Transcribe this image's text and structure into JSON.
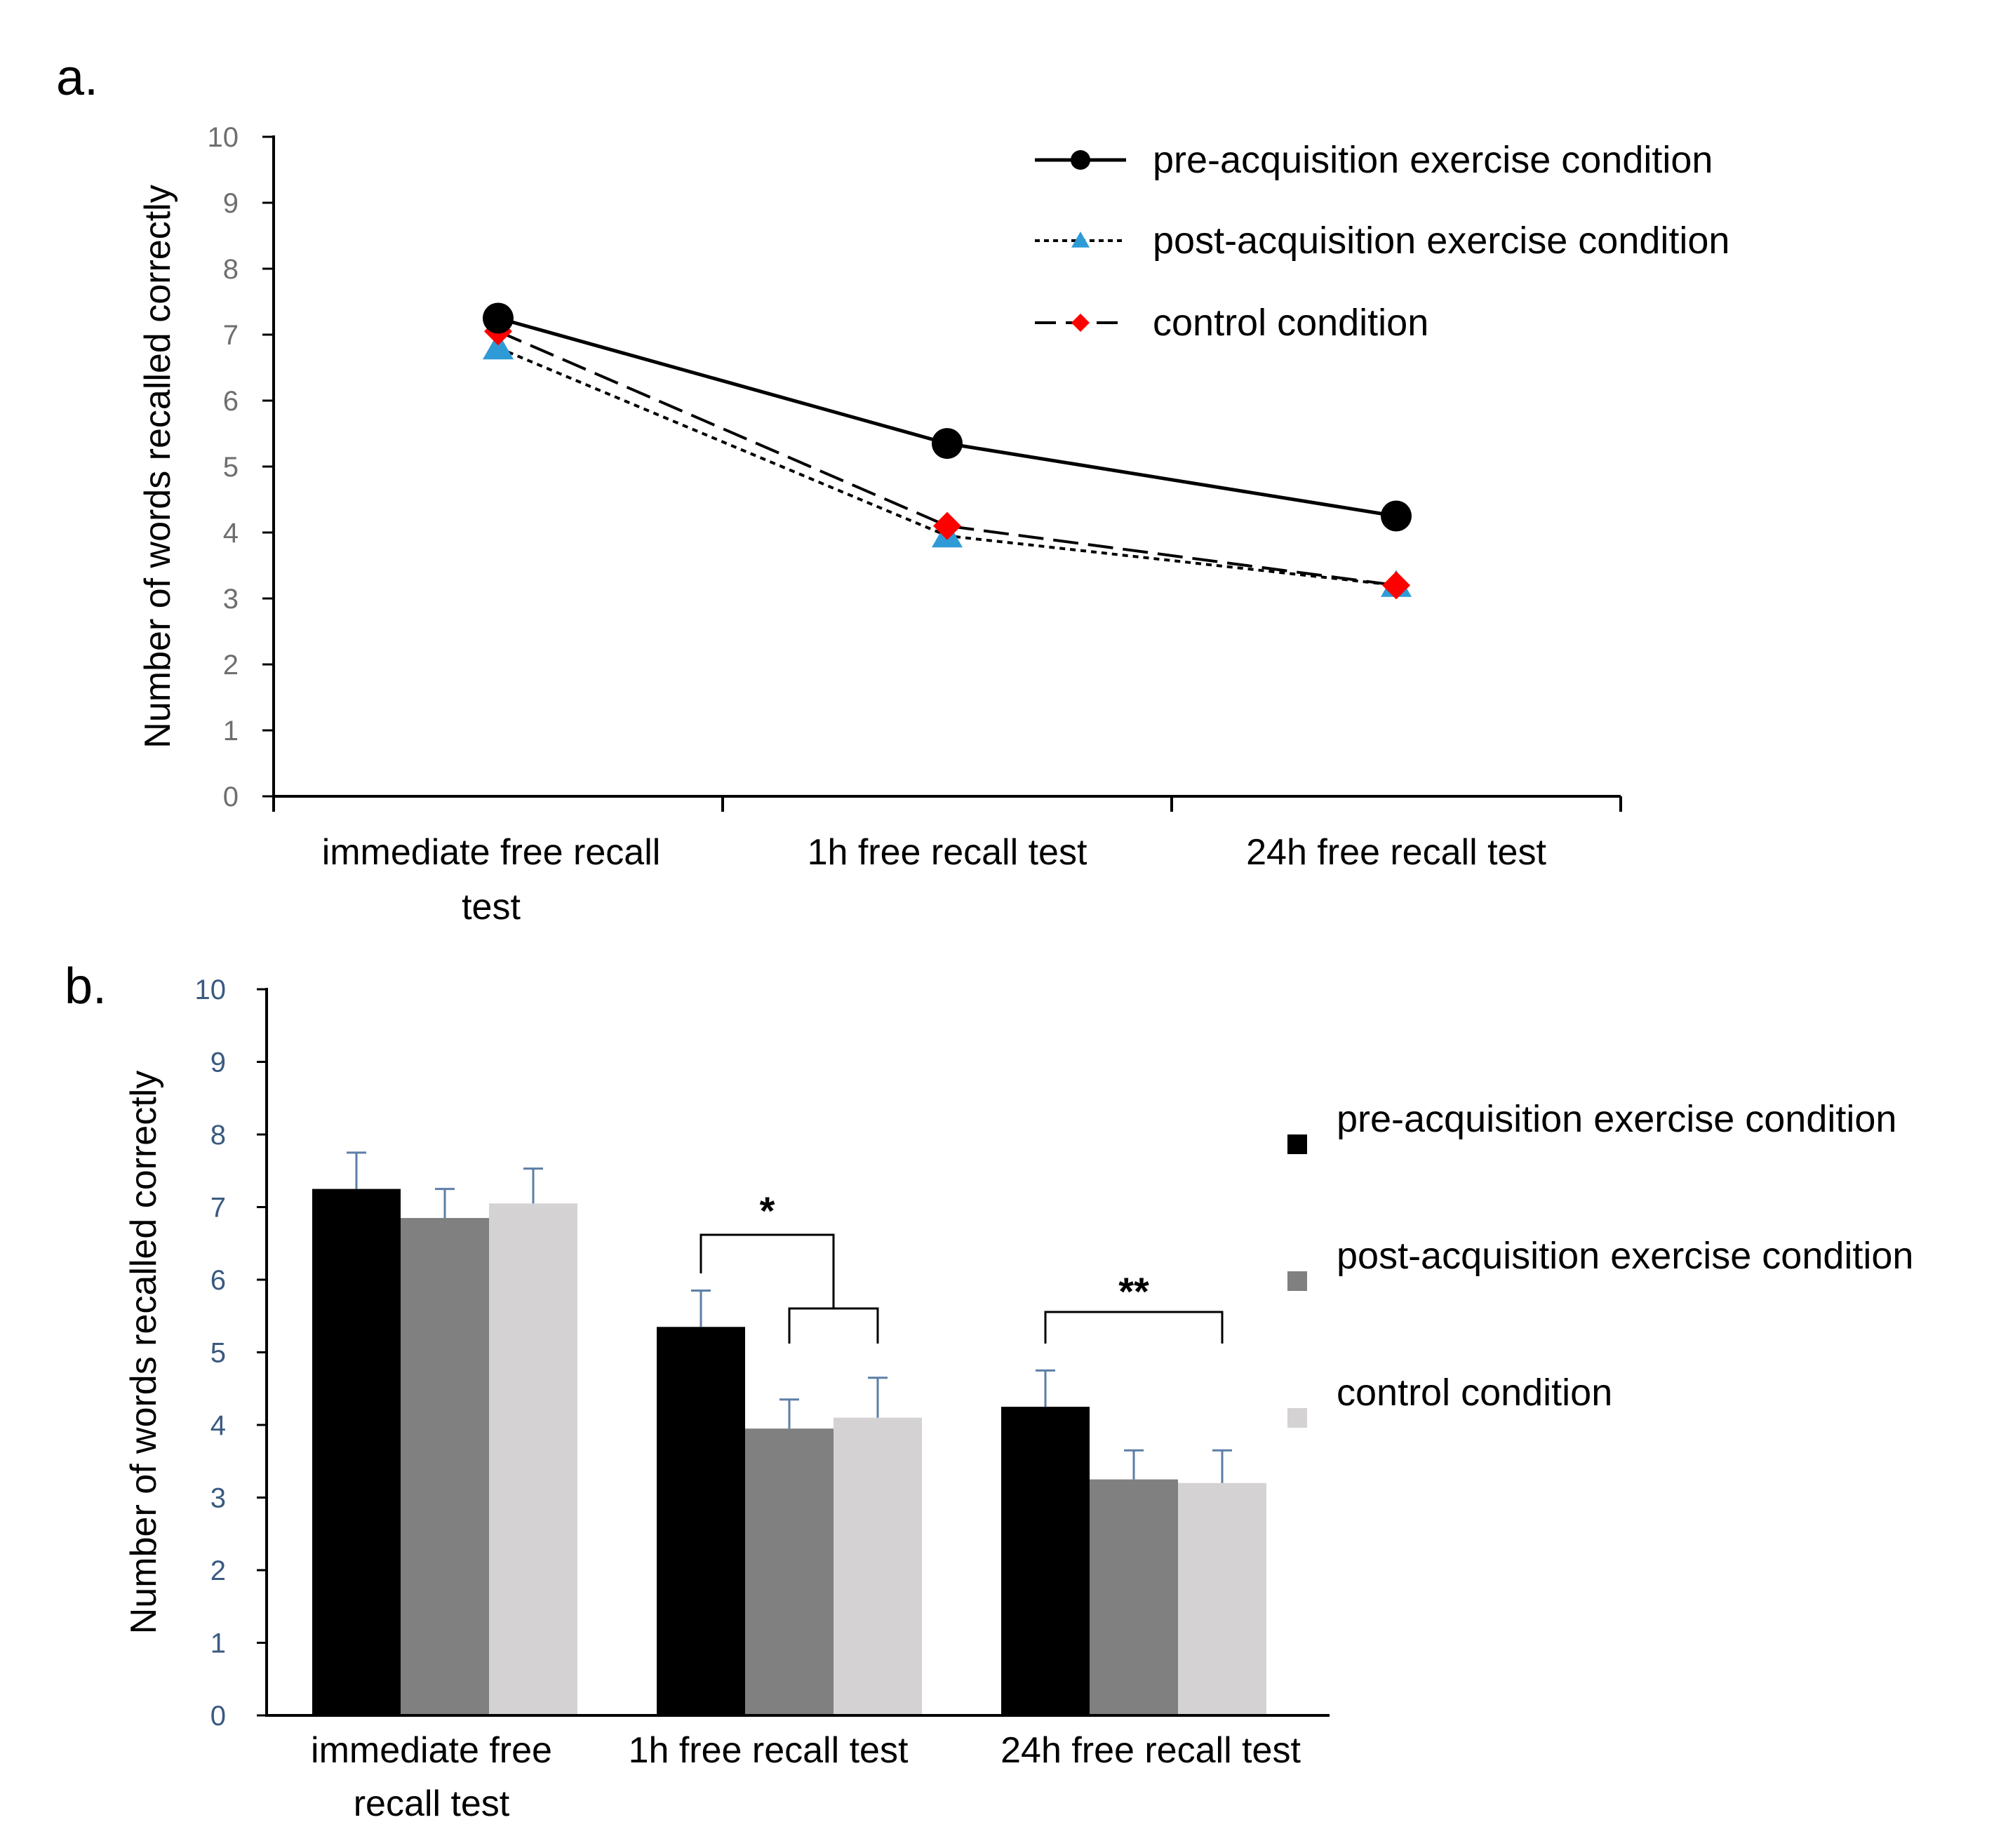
{
  "chart_data": [
    {
      "type": "line",
      "panel_label": "a.",
      "ylabel": "Number of words recalled correctly",
      "xlabel": "",
      "ylim": [
        0,
        10
      ],
      "yticks": [
        "0",
        "1",
        "2",
        "3",
        "4",
        "5",
        "6",
        "7",
        "8",
        "9",
        "10"
      ],
      "categories": [
        [
          "immediate free recall",
          "test"
        ],
        [
          "1h free recall test"
        ],
        [
          "24h free recall test"
        ]
      ],
      "series": [
        {
          "name": "pre-acquisition exercise condition",
          "values": [
            7.25,
            5.35,
            4.25
          ],
          "color": "#000000",
          "marker": "circle",
          "dash": "solid"
        },
        {
          "name": "post-acquisition exercise condition",
          "values": [
            6.8,
            3.95,
            3.2
          ],
          "color": "#2e9bd6",
          "marker": "triangle",
          "dash": "dotted"
        },
        {
          "name": "control condition",
          "values": [
            7.05,
            4.1,
            3.2
          ],
          "color": "#ff0000",
          "marker": "diamond",
          "dash": "dashed"
        }
      ],
      "legend_position": "top-right",
      "grid": false
    },
    {
      "type": "bar",
      "panel_label": "b.",
      "ylabel": "Number of words recalled correctly",
      "xlabel": "",
      "ylim": [
        0,
        10
      ],
      "yticks": [
        "0",
        "1",
        "2",
        "3",
        "4",
        "5",
        "6",
        "7",
        "8",
        "9",
        "10"
      ],
      "categories": [
        [
          "immediate free",
          "recall test"
        ],
        [
          "1h free recall  test"
        ],
        [
          "24h free recall  test"
        ]
      ],
      "series": [
        {
          "name": "pre-acquisition exercise condition",
          "values": [
            7.25,
            5.35,
            4.25
          ],
          "errors": [
            0.5,
            0.5,
            0.5
          ],
          "color": "#000000"
        },
        {
          "name": "post-acquisition exercise condition",
          "values": [
            6.85,
            3.95,
            3.25
          ],
          "errors": [
            0.4,
            0.4,
            0.4
          ],
          "color": "#808080"
        },
        {
          "name": "control condition",
          "values": [
            7.05,
            4.1,
            3.2
          ],
          "errors": [
            0.48,
            0.55,
            0.45
          ],
          "color": "#d4d2d3"
        }
      ],
      "annotations": [
        {
          "text": "*",
          "category": 1
        },
        {
          "text": "**",
          "category": 2
        }
      ],
      "legend_position": "right",
      "grid": false
    }
  ]
}
